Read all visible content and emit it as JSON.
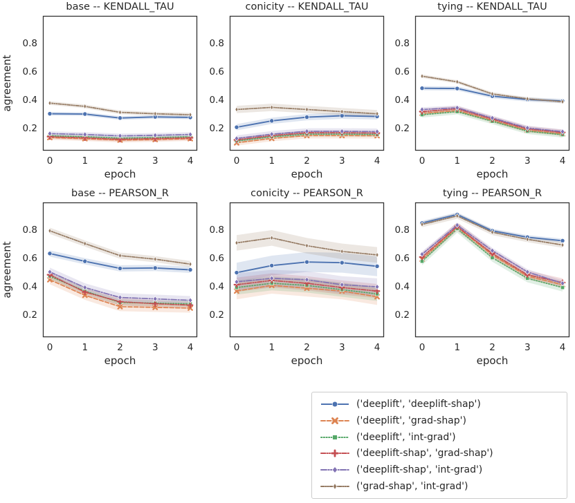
{
  "figure": {
    "background": "#ffffff",
    "text_color": "#262626",
    "spine_color": "#333333",
    "xlabel": "epoch",
    "ylabel": "agreement"
  },
  "series_styles": [
    {
      "key": "deeplift--deeplift-shap",
      "color": "#4c72b0",
      "dash": "",
      "marker": "circle"
    },
    {
      "key": "deeplift--grad-shap",
      "color": "#dd8452",
      "dash": "6,2.6",
      "marker": "x"
    },
    {
      "key": "deeplift--int-grad",
      "color": "#55a868",
      "dash": "1.4,2.3",
      "marker": "square"
    },
    {
      "key": "deeplift-shap--grad-shap",
      "color": "#c44e52",
      "dash": "6.5,2,1.3,2,1.3,2",
      "marker": "plus"
    },
    {
      "key": "deeplift-shap--int-grad",
      "color": "#8172b3",
      "dash": "8,2.2,1.6,2.2",
      "marker": "diamond"
    },
    {
      "key": "grad-shap--int-grad",
      "color": "#937860",
      "dash": "4.5,1.8,1.3,1.8,1.3,1.8",
      "marker": "thin-diamond"
    }
  ],
  "legend": {
    "position": "bottom-right",
    "items": [
      {
        "label": "('deeplift', 'deeplift-shap')"
      },
      {
        "label": "('deeplift', 'grad-shap')"
      },
      {
        "label": "('deeplift', 'int-grad')"
      },
      {
        "label": "('deeplift-shap', 'grad-shap')"
      },
      {
        "label": "('deeplift-shap', 'int-grad')"
      },
      {
        "label": "('grad-shap', 'int-grad')"
      }
    ]
  },
  "chart_data": [
    {
      "type": "line",
      "title": "base -- KENDALL_TAU",
      "xlabel": "epoch",
      "ylabel": "agreement",
      "x": [
        0,
        1,
        2,
        3,
        4
      ],
      "xtick_labels": [
        "0",
        "1",
        "2",
        "3",
        "4"
      ],
      "ytick_labels": [
        "0.2",
        "0.4",
        "0.6",
        "0.8"
      ],
      "yticks": [
        0.2,
        0.4,
        0.6,
        0.8
      ],
      "ylim": [
        0.04,
        0.99
      ],
      "xlim": [
        -0.2,
        4.2
      ],
      "grid": false,
      "series": [
        {
          "name": "('deeplift', 'deeplift-shap')",
          "values": [
            0.3,
            0.298,
            0.27,
            0.278,
            0.274
          ],
          "band": 0.013
        },
        {
          "name": "('deeplift', 'grad-shap')",
          "values": [
            0.132,
            0.124,
            0.114,
            0.118,
            0.124
          ],
          "band": 0.016
        },
        {
          "name": "('deeplift', 'int-grad')",
          "values": [
            0.144,
            0.138,
            0.128,
            0.132,
            0.138
          ],
          "band": 0.012
        },
        {
          "name": "('deeplift-shap', 'grad-shap')",
          "values": [
            0.138,
            0.13,
            0.12,
            0.125,
            0.13
          ],
          "band": 0.015
        },
        {
          "name": "('deeplift-shap', 'int-grad')",
          "values": [
            0.16,
            0.154,
            0.144,
            0.148,
            0.154
          ],
          "band": 0.016
        },
        {
          "name": "('grad-shap', 'int-grad')",
          "values": [
            0.375,
            0.352,
            0.31,
            0.3,
            0.293
          ],
          "band": 0.013
        }
      ]
    },
    {
      "type": "line",
      "title": "conicity -- KENDALL_TAU",
      "xlabel": "epoch",
      "ylabel": null,
      "x": [
        0,
        1,
        2,
        3,
        4
      ],
      "xtick_labels": [
        "0",
        "1",
        "2",
        "3",
        "4"
      ],
      "ytick_labels": [
        "0.2",
        "0.4",
        "0.6",
        "0.8"
      ],
      "yticks": [
        0.2,
        0.4,
        0.6,
        0.8
      ],
      "ylim": [
        0.04,
        0.99
      ],
      "xlim": [
        -0.2,
        4.2
      ],
      "grid": false,
      "series": [
        {
          "name": "('deeplift', 'deeplift-shap')",
          "values": [
            0.205,
            0.25,
            0.276,
            0.286,
            0.281
          ],
          "band": 0.022
        },
        {
          "name": "('deeplift', 'grad-shap')",
          "values": [
            0.095,
            0.126,
            0.146,
            0.146,
            0.145
          ],
          "band": 0.02
        },
        {
          "name": "('deeplift', 'int-grad')",
          "values": [
            0.108,
            0.138,
            0.156,
            0.156,
            0.154
          ],
          "band": 0.016
        },
        {
          "name": "('deeplift-shap', 'grad-shap')",
          "values": [
            0.116,
            0.146,
            0.166,
            0.166,
            0.164
          ],
          "band": 0.016
        },
        {
          "name": "('deeplift-shap', 'int-grad')",
          "values": [
            0.126,
            0.156,
            0.176,
            0.176,
            0.174
          ],
          "band": 0.022
        },
        {
          "name": "('grad-shap', 'int-grad')",
          "values": [
            0.33,
            0.345,
            0.33,
            0.315,
            0.3
          ],
          "band": 0.026
        }
      ]
    },
    {
      "type": "line",
      "title": "tying -- KENDALL_TAU",
      "xlabel": "epoch",
      "ylabel": null,
      "x": [
        0,
        1,
        2,
        3,
        4
      ],
      "xtick_labels": [
        "0",
        "1",
        "2",
        "3",
        "4"
      ],
      "ytick_labels": [
        "0.2",
        "0.4",
        "0.6",
        "0.8"
      ],
      "yticks": [
        0.2,
        0.4,
        0.6,
        0.8
      ],
      "ylim": [
        0.04,
        0.99
      ],
      "xlim": [
        -0.2,
        4.2
      ],
      "grid": false,
      "series": [
        {
          "name": "('deeplift', 'deeplift-shap')",
          "values": [
            0.48,
            0.478,
            0.424,
            0.4,
            0.39
          ],
          "band": 0.015
        },
        {
          "name": "('deeplift', 'grad-shap')",
          "values": [
            0.303,
            0.323,
            0.253,
            0.183,
            0.158
          ],
          "band": 0.016
        },
        {
          "name": "('deeplift', 'int-grad')",
          "values": [
            0.293,
            0.315,
            0.247,
            0.177,
            0.152
          ],
          "band": 0.02
        },
        {
          "name": "('deeplift-shap', 'grad-shap')",
          "values": [
            0.315,
            0.335,
            0.263,
            0.193,
            0.168
          ],
          "band": 0.02
        },
        {
          "name": "('deeplift-shap', 'int-grad')",
          "values": [
            0.33,
            0.342,
            0.27,
            0.2,
            0.174
          ],
          "band": 0.016
        },
        {
          "name": "('grad-shap', 'int-grad')",
          "values": [
            0.565,
            0.525,
            0.44,
            0.405,
            0.385
          ],
          "band": 0.012
        }
      ]
    },
    {
      "type": "line",
      "title": "base -- PEARSON_R",
      "xlabel": "epoch",
      "ylabel": "agreement",
      "x": [
        0,
        1,
        2,
        3,
        4
      ],
      "xtick_labels": [
        "0",
        "1",
        "2",
        "3",
        "4"
      ],
      "ytick_labels": [
        "0.2",
        "0.4",
        "0.6",
        "0.8"
      ],
      "yticks": [
        0.2,
        0.4,
        0.6,
        0.8
      ],
      "ylim": [
        0.04,
        0.99
      ],
      "xlim": [
        -0.2,
        4.2
      ],
      "grid": false,
      "series": [
        {
          "name": "('deeplift', 'deeplift-shap')",
          "values": [
            0.63,
            0.575,
            0.525,
            0.528,
            0.515
          ],
          "band": 0.022
        },
        {
          "name": "('deeplift', 'grad-shap')",
          "values": [
            0.445,
            0.335,
            0.255,
            0.25,
            0.245
          ],
          "band": 0.032
        },
        {
          "name": "('deeplift', 'int-grad')",
          "values": [
            0.47,
            0.365,
            0.285,
            0.28,
            0.275
          ],
          "band": 0.022
        },
        {
          "name": "('deeplift-shap', 'grad-shap')",
          "values": [
            0.48,
            0.358,
            0.29,
            0.276,
            0.266
          ],
          "band": 0.026
        },
        {
          "name": "('deeplift-shap', 'int-grad')",
          "values": [
            0.5,
            0.39,
            0.32,
            0.31,
            0.3
          ],
          "band": 0.03
        },
        {
          "name": "('grad-shap', 'int-grad')",
          "values": [
            0.79,
            0.7,
            0.615,
            0.59,
            0.555
          ],
          "band": 0.022
        }
      ]
    },
    {
      "type": "line",
      "title": "conicity -- PEARSON_R",
      "xlabel": "epoch",
      "ylabel": null,
      "x": [
        0,
        1,
        2,
        3,
        4
      ],
      "xtick_labels": [
        "0",
        "1",
        "2",
        "3",
        "4"
      ],
      "ytick_labels": [
        "0.2",
        "0.4",
        "0.6",
        "0.8"
      ],
      "yticks": [
        0.2,
        0.4,
        0.6,
        0.8
      ],
      "ylim": [
        0.04,
        0.99
      ],
      "xlim": [
        -0.2,
        4.2
      ],
      "grid": false,
      "series": [
        {
          "name": "('deeplift', 'deeplift-shap')",
          "values": [
            0.495,
            0.545,
            0.57,
            0.565,
            0.54
          ],
          "band": 0.07
        },
        {
          "name": "('deeplift', 'grad-shap')",
          "values": [
            0.365,
            0.405,
            0.385,
            0.365,
            0.325
          ],
          "band": 0.058
        },
        {
          "name": "('deeplift', 'int-grad')",
          "values": [
            0.39,
            0.42,
            0.405,
            0.375,
            0.345
          ],
          "band": 0.05
        },
        {
          "name": "('deeplift-shap', 'grad-shap')",
          "values": [
            0.41,
            0.44,
            0.42,
            0.39,
            0.365
          ],
          "band": 0.05
        },
        {
          "name": "('deeplift-shap', 'int-grad')",
          "values": [
            0.43,
            0.455,
            0.445,
            0.41,
            0.395
          ],
          "band": 0.06
        },
        {
          "name": "('grad-shap', 'int-grad')",
          "values": [
            0.705,
            0.74,
            0.685,
            0.645,
            0.62
          ],
          "band": 0.055
        }
      ]
    },
    {
      "type": "line",
      "title": "tying -- PEARSON_R",
      "xlabel": "epoch",
      "ylabel": null,
      "x": [
        0,
        1,
        2,
        3,
        4
      ],
      "xtick_labels": [
        "0",
        "1",
        "2",
        "3",
        "4"
      ],
      "ytick_labels": [
        "0.2",
        "0.4",
        "0.6",
        "0.8"
      ],
      "yticks": [
        0.2,
        0.4,
        0.6,
        0.8
      ],
      "ylim": [
        0.04,
        0.99
      ],
      "xlim": [
        -0.2,
        4.2
      ],
      "grid": false,
      "series": [
        {
          "name": "('deeplift', 'deeplift-shap')",
          "values": [
            0.845,
            0.905,
            0.79,
            0.745,
            0.72
          ],
          "band": 0.015
        },
        {
          "name": "('deeplift', 'grad-shap')",
          "values": [
            0.59,
            0.815,
            0.62,
            0.47,
            0.41
          ],
          "band": 0.022
        },
        {
          "name": "('deeplift', 'int-grad')",
          "values": [
            0.575,
            0.805,
            0.6,
            0.455,
            0.39
          ],
          "band": 0.028
        },
        {
          "name": "('deeplift-shap', 'grad-shap')",
          "values": [
            0.605,
            0.82,
            0.63,
            0.48,
            0.425
          ],
          "band": 0.03
        },
        {
          "name": "('deeplift-shap', 'int-grad')",
          "values": [
            0.625,
            0.83,
            0.65,
            0.5,
            0.42
          ],
          "band": 0.02
        },
        {
          "name": "('grad-shap', 'int-grad')",
          "values": [
            0.835,
            0.895,
            0.78,
            0.73,
            0.69
          ],
          "band": 0.02
        }
      ]
    }
  ]
}
